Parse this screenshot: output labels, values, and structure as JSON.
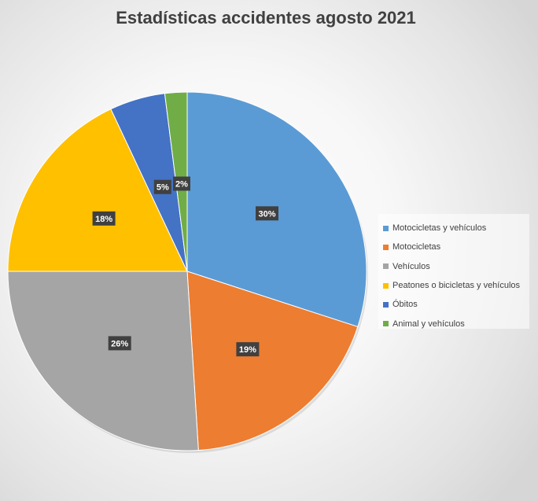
{
  "chart_data": {
    "type": "pie",
    "title": "Estadísticas accidentes agosto 2021",
    "categories": [
      "Motocicletas y vehículos",
      "Motocicletas",
      "Vehículos",
      "Peatones o bicicletas y vehículos",
      "Óbitos",
      "Animal y vehículos"
    ],
    "values": [
      30,
      19,
      26,
      18,
      5,
      2
    ],
    "data_labels": [
      "30%",
      "19%",
      "26%",
      "18%",
      "5%",
      "2%"
    ],
    "colors": [
      "#5B9BD5",
      "#ED7D31",
      "#A5A5A5",
      "#FFC000",
      "#4472C4",
      "#70AD47"
    ],
    "legend_position": "right"
  }
}
